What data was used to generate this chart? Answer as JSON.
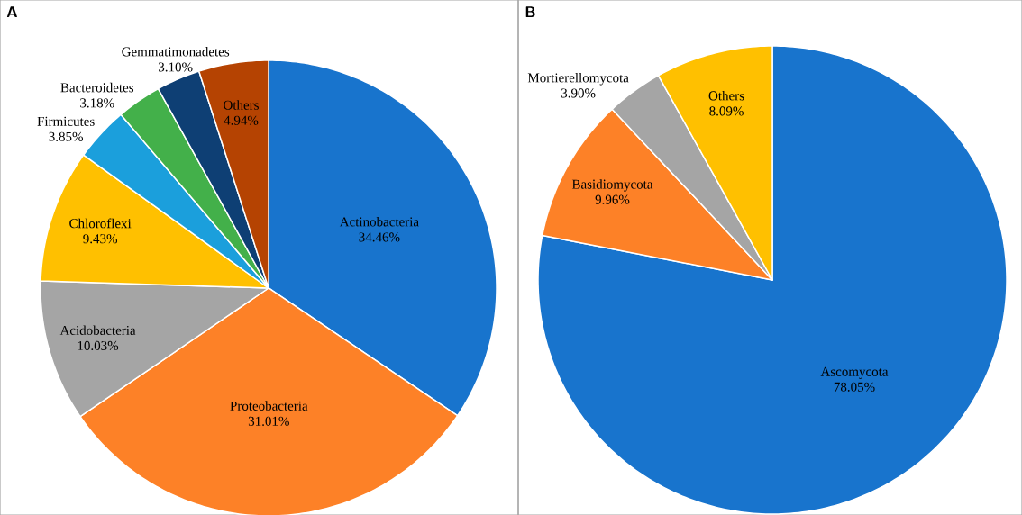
{
  "chart_data": [
    {
      "type": "pie",
      "title": "A",
      "categories": [
        "Actinobacteria",
        "Proteobacteria",
        "Acidobacteria",
        "Chloroflexi",
        "Firmicutes",
        "Bacteroidetes",
        "Gemmatimonadetes",
        "Others"
      ],
      "values": [
        34.46,
        31.01,
        10.03,
        9.43,
        3.85,
        3.18,
        3.1,
        4.94
      ],
      "value_labels": [
        "34.46%",
        "31.01%",
        "10.03%",
        "9.43%",
        "3.85%",
        "3.18%",
        "3.10%",
        "4.94%"
      ],
      "colors": [
        "#1874cd",
        "#fd8127",
        "#a5a5a5",
        "#ffc000",
        "#1b9fdc",
        "#43b04a",
        "#0e3f74",
        "#b54302"
      ]
    },
    {
      "type": "pie",
      "title": "B",
      "categories": [
        "Ascomycota",
        "Basidiomycota",
        "Mortierellomycota",
        "Others"
      ],
      "values": [
        78.05,
        9.96,
        3.9,
        8.09
      ],
      "value_labels": [
        "78.05%",
        "9.96%",
        "3.90%",
        "8.09%"
      ],
      "colors": [
        "#1874cd",
        "#fd8127",
        "#a5a5a5",
        "#ffc000"
      ]
    }
  ]
}
